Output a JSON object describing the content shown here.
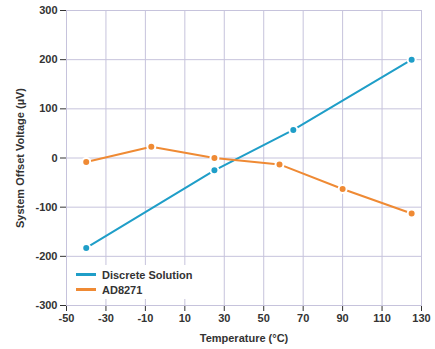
{
  "chart_data": {
    "type": "line",
    "x_label": "Temperature (°C)",
    "y_label": "System Offset Voltage (µV)",
    "series": [
      {
        "name": "Discrete Solution",
        "color": "#1f9ec8",
        "marker": "circle",
        "x": [
          -40,
          25,
          65,
          125
        ],
        "values": [
          -183,
          -25,
          57,
          200
        ]
      },
      {
        "name": "AD8271",
        "color": "#ef8a34",
        "marker": "circle",
        "x": [
          -40,
          -7,
          25,
          58,
          90,
          125
        ],
        "values": [
          -8,
          23,
          0,
          -13,
          -63,
          -113
        ]
      }
    ],
    "xlim": [
      -50,
      130
    ],
    "xticks": [
      -50,
      -30,
      -10,
      10,
      30,
      50,
      70,
      90,
      110,
      130
    ],
    "ylim": [
      -300,
      300
    ],
    "yticks": [
      -300,
      -200,
      -100,
      0,
      100,
      200,
      300
    ],
    "grid": true,
    "legend": "lower left"
  }
}
